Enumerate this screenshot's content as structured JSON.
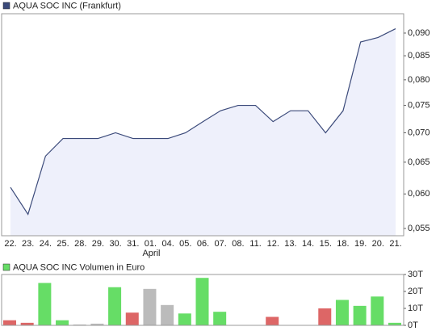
{
  "chart_data": [
    {
      "type": "line",
      "title": "AQUA SOC INC (Frankfurt)",
      "log_scale": true,
      "categories": [
        "22.",
        "23.",
        "24.",
        "25.",
        "28.",
        "29.",
        "30.",
        "31.",
        "01.",
        "04.",
        "05.",
        "06.",
        "07.",
        "08.",
        "11.",
        "12.",
        "13.",
        "14.",
        "15.",
        "18.",
        "19.",
        "20.",
        "21."
      ],
      "month_labels": [
        {
          "label": "April",
          "category": 8
        }
      ],
      "series": [
        {
          "name": "AQUA SOC INC (Frankfurt)",
          "color": "#3b4a7a",
          "fill": "#eef0fb",
          "values": [
            0.061,
            0.057,
            0.066,
            0.069,
            0.069,
            0.069,
            0.07,
            0.069,
            0.069,
            0.069,
            0.07,
            0.072,
            0.074,
            0.075,
            0.075,
            0.072,
            0.074,
            0.074,
            0.07,
            0.074,
            0.088,
            0.089,
            0.091
          ]
        }
      ],
      "ylim": [
        0.054,
        0.0945
      ],
      "yticks": [
        {
          "value": 0.055,
          "label": "0,055"
        },
        {
          "value": 0.06,
          "label": "0,060"
        },
        {
          "value": 0.065,
          "label": "0,065"
        },
        {
          "value": 0.07,
          "label": "0,070"
        },
        {
          "value": 0.075,
          "label": "0,075"
        },
        {
          "value": 0.08,
          "label": "0,080"
        },
        {
          "value": 0.085,
          "label": "0,085"
        },
        {
          "value": 0.09,
          "label": "0,090"
        }
      ]
    },
    {
      "type": "bar",
      "title": "AQUA SOC INC Volumen in Euro",
      "legend_color": "#66dd66",
      "series": [
        {
          "name": "AQUA SOC INC Volumen in Euro",
          "values": [
            3000,
            1500,
            25000,
            3000,
            500,
            1000,
            22500,
            7500,
            21500,
            12000,
            7000,
            28000,
            8000,
            0,
            0,
            5000,
            0,
            0,
            10000,
            15000,
            11500,
            17000,
            1500
          ],
          "colors": [
            "#dd6666",
            "#dd6666",
            "#66dd66",
            "#66dd66",
            "#bbbbbb",
            "#bbbbbb",
            "#66dd66",
            "#dd6666",
            "#bbbbbb",
            "#bbbbbb",
            "#66dd66",
            "#66dd66",
            "#66dd66",
            "#bbbbbb",
            "#bbbbbb",
            "#dd6666",
            "#bbbbbb",
            "#bbbbbb",
            "#dd6666",
            "#66dd66",
            "#66dd66",
            "#66dd66",
            "#66dd66"
          ]
        }
      ],
      "ylim": [
        0,
        30000
      ],
      "yticks": [
        {
          "value": 0,
          "label": "0T"
        },
        {
          "value": 10000,
          "label": "10T"
        },
        {
          "value": 20000,
          "label": "20T"
        },
        {
          "value": 30000,
          "label": "30T"
        }
      ]
    }
  ]
}
